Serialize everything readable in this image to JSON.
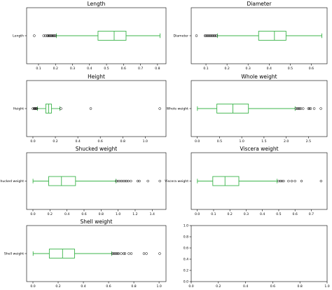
{
  "colors": {
    "box": "#3cb44b",
    "median": "#3cb44b",
    "flier": "#000000",
    "frame": "#000000"
  },
  "chart_data": [
    {
      "type": "box",
      "title": "Length",
      "series": [
        {
          "name": "Length",
          "stats": {
            "whislo": 0.205,
            "q1": 0.45,
            "med": 0.545,
            "q3": 0.615,
            "whishi": 0.815
          },
          "fliers": [
            0.075,
            0.13,
            0.14,
            0.15,
            0.155,
            0.16,
            0.165,
            0.17,
            0.175,
            0.18,
            0.185,
            0.19,
            0.195,
            0.2
          ]
        }
      ],
      "xlim": [
        0.03,
        0.85
      ],
      "xticks": [
        0.1,
        0.2,
        0.3,
        0.4,
        0.5,
        0.6,
        0.7,
        0.8
      ],
      "xticklabels": [
        "0.1",
        "0.2",
        "0.3",
        "0.4",
        "0.5",
        "0.6",
        "0.7",
        "0.8"
      ],
      "ylabels": [
        "Length"
      ],
      "grid": false
    },
    {
      "type": "box",
      "title": "Diameter",
      "series": [
        {
          "name": "Diameter",
          "stats": {
            "whislo": 0.155,
            "q1": 0.35,
            "med": 0.425,
            "q3": 0.48,
            "whishi": 0.65
          },
          "fliers": [
            0.055,
            0.095,
            0.1,
            0.105,
            0.11,
            0.115,
            0.12,
            0.125,
            0.13,
            0.135,
            0.14,
            0.145,
            0.15
          ]
        }
      ],
      "xlim": [
        0.03,
        0.675
      ],
      "xticks": [
        0.1,
        0.2,
        0.3,
        0.4,
        0.5,
        0.6
      ],
      "xticklabels": [
        "0.1",
        "0.2",
        "0.3",
        "0.4",
        "0.5",
        "0.6"
      ],
      "ylabels": [
        "Diameter"
      ],
      "grid": false
    },
    {
      "type": "box",
      "title": "Height",
      "series": [
        {
          "name": "Height",
          "stats": {
            "whislo": 0.04,
            "q1": 0.115,
            "med": 0.14,
            "q3": 0.165,
            "whishi": 0.24
          },
          "fliers": [
            0.0,
            0.01,
            0.015,
            0.02,
            0.025,
            0.03,
            0.035,
            0.25,
            0.515,
            1.13
          ]
        }
      ],
      "xlim": [
        -0.056,
        1.185
      ],
      "xticks": [
        0.0,
        0.2,
        0.4,
        0.6,
        0.8,
        1.0
      ],
      "xticklabels": [
        "0.0",
        "0.2",
        "0.4",
        "0.6",
        "0.8",
        "1.0"
      ],
      "ylabels": [
        "Height"
      ],
      "grid": false
    },
    {
      "type": "box",
      "title": "Whole weight",
      "series": [
        {
          "name": "Whole weight",
          "stats": {
            "whislo": 0.002,
            "q1": 0.44,
            "med": 0.8,
            "q3": 1.15,
            "whishi": 2.2
          },
          "fliers": [
            2.22,
            2.25,
            2.28,
            2.3,
            2.33,
            2.38,
            2.5,
            2.52,
            2.55,
            2.63,
            2.78
          ]
        }
      ],
      "xlim": [
        -0.137,
        2.92
      ],
      "xticks": [
        0.0,
        0.5,
        1.0,
        1.5,
        2.0,
        2.5
      ],
      "xticklabels": [
        "0.0",
        "0.5",
        "1.0",
        "1.5",
        "2.0",
        "2.5"
      ],
      "ylabels": [
        "Whole weight"
      ],
      "grid": false
    },
    {
      "type": "box",
      "title": "Shucked weight",
      "series": [
        {
          "name": "Shucked weight",
          "stats": {
            "whislo": 0.001,
            "q1": 0.185,
            "med": 0.335,
            "q3": 0.5,
            "whishi": 0.975
          },
          "fliers": [
            0.98,
            1.0,
            1.02,
            1.04,
            1.06,
            1.08,
            1.1,
            1.12,
            1.15,
            1.23,
            1.25,
            1.35,
            1.49
          ]
        }
      ],
      "xlim": [
        -0.074,
        1.562
      ],
      "xticks": [
        0.0,
        0.2,
        0.4,
        0.6,
        0.8,
        1.0,
        1.2,
        1.4
      ],
      "xticklabels": [
        "0.0",
        "0.2",
        "0.4",
        "0.6",
        "0.8",
        "1.0",
        "1.2",
        "1.4"
      ],
      "ylabels": [
        "Shucked weight"
      ],
      "grid": false
    },
    {
      "type": "box",
      "title": "Viscera weight",
      "series": [
        {
          "name": "Viscera weight",
          "stats": {
            "whislo": 0.0005,
            "q1": 0.095,
            "med": 0.17,
            "q3": 0.255,
            "whishi": 0.49
          },
          "fliers": [
            0.5,
            0.51,
            0.52,
            0.53,
            0.56,
            0.58,
            0.6,
            0.64,
            0.76
          ]
        }
      ],
      "xlim": [
        -0.0375,
        0.797
      ],
      "xticks": [
        0.0,
        0.1,
        0.2,
        0.3,
        0.4,
        0.5,
        0.6,
        0.7
      ],
      "xticklabels": [
        "0.0",
        "0.1",
        "0.2",
        "0.3",
        "0.4",
        "0.5",
        "0.6",
        "0.7"
      ],
      "ylabels": [
        "Viscera weight"
      ],
      "grid": false
    },
    {
      "type": "box",
      "title": "Shell weight",
      "series": [
        {
          "name": "Shell weight",
          "stats": {
            "whislo": 0.0015,
            "q1": 0.13,
            "med": 0.235,
            "q3": 0.33,
            "whishi": 0.625
          },
          "fliers": [
            0.63,
            0.64,
            0.65,
            0.66,
            0.67,
            0.68,
            0.7,
            0.72,
            0.73,
            0.76,
            0.78,
            0.88,
            0.9,
            1.005
          ]
        }
      ],
      "xlim": [
        -0.05,
        1.055
      ],
      "xticks": [
        0.0,
        0.2,
        0.4,
        0.6,
        0.8,
        1.0
      ],
      "xticklabels": [
        "0.0",
        "0.2",
        "0.4",
        "0.6",
        "0.8",
        "1.0"
      ],
      "ylabels": [
        "Shell weight"
      ],
      "grid": false
    },
    {
      "type": "empty",
      "title": "",
      "xlim": [
        0.0,
        1.0
      ],
      "ylim": [
        0.0,
        1.0
      ],
      "xticks": [
        0.0,
        0.2,
        0.4,
        0.6,
        0.8,
        1.0
      ],
      "xticklabels": [
        "0.0",
        "0.2",
        "0.4",
        "0.6",
        "0.8",
        "1.0"
      ],
      "yticks": [
        0.0,
        0.2,
        0.4,
        0.6,
        0.8,
        1.0
      ],
      "yticklabels": [
        "0.0",
        "0.2",
        "0.4",
        "0.6",
        "0.8",
        "1.0"
      ],
      "grid": false
    }
  ]
}
